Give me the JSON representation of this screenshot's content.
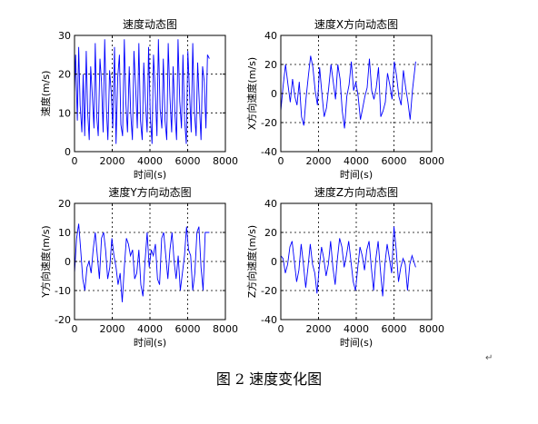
{
  "figure": {
    "caption": "图 2  速度变化图",
    "paragraph_mark": "↵"
  },
  "chart_data": [
    {
      "type": "line",
      "title": "速度动态图",
      "xlabel": "时间(s)",
      "ylabel": "速度(m/s)",
      "xlim": [
        0,
        8000
      ],
      "ylim": [
        0,
        30
      ],
      "xticks": [
        0,
        2000,
        4000,
        6000,
        8000
      ],
      "yticks": [
        0,
        10,
        20,
        30
      ],
      "grid": "dotted",
      "color": "#0000ff",
      "x": [
        0,
        60,
        150,
        220,
        300,
        390,
        460,
        540,
        620,
        700,
        780,
        860,
        950,
        1030,
        1100,
        1180,
        1260,
        1350,
        1430,
        1520,
        1600,
        1690,
        1770,
        1860,
        1950,
        2030,
        2120,
        2200,
        2290,
        2380,
        2460,
        2550,
        2640,
        2720,
        2810,
        2900,
        2980,
        3070,
        3150,
        3240,
        3330,
        3410,
        3500,
        3590,
        3670,
        3760,
        3850,
        3930,
        4020,
        4110,
        4190,
        4280,
        4370,
        4450,
        4540,
        4630,
        4710,
        4800,
        4890,
        4970,
        5060,
        5150,
        5230,
        5320,
        5410,
        5490,
        5580,
        5670,
        5750,
        5840,
        5930,
        6010,
        6100,
        6190,
        6270,
        6360,
        6450,
        6530,
        6620,
        6710,
        6790,
        6880,
        6970,
        7050,
        7150
      ],
      "y": [
        15,
        25,
        8,
        27,
        12,
        5,
        20,
        4,
        26,
        10,
        3,
        22,
        14,
        6,
        28,
        9,
        4,
        24,
        18,
        5,
        29,
        11,
        3,
        21,
        15,
        6,
        27,
        2,
        19,
        25,
        7,
        4,
        29,
        13,
        5,
        22,
        10,
        3,
        26,
        17,
        6,
        28,
        8,
        3,
        23,
        13,
        5,
        27,
        9,
        2,
        25,
        16,
        4,
        29,
        11,
        6,
        24,
        8,
        3,
        28,
        14,
        5,
        22,
        10,
        3,
        29,
        13,
        6,
        25,
        8,
        2,
        26,
        15,
        5,
        28,
        10,
        4,
        23,
        12,
        3,
        22,
        18,
        6,
        25,
        24
      ]
    },
    {
      "type": "line",
      "title": "速度X方向动态图",
      "xlabel": "时间(s)",
      "ylabel": "X方向速度(m/s)",
      "xlim": [
        0,
        8000
      ],
      "ylim": [
        -40,
        40
      ],
      "xticks": [
        0,
        2000,
        4000,
        6000,
        8000
      ],
      "yticks": [
        -40,
        -20,
        0,
        20,
        40
      ],
      "grid": "dotted",
      "color": "#0000ff",
      "x": [
        0,
        120,
        250,
        380,
        500,
        620,
        740,
        860,
        980,
        1100,
        1220,
        1340,
        1460,
        1580,
        1700,
        1820,
        1940,
        2060,
        2180,
        2300,
        2420,
        2540,
        2660,
        2780,
        2900,
        3020,
        3140,
        3260,
        3380,
        3500,
        3620,
        3740,
        3860,
        3980,
        4100,
        4220,
        4340,
        4460,
        4580,
        4700,
        4820,
        4940,
        5060,
        5180,
        5300,
        5420,
        5540,
        5660,
        5780,
        5900,
        6020,
        6140,
        6260,
        6380,
        6500,
        6620,
        6740,
        6860,
        6980,
        7150
      ],
      "y": [
        -12,
        5,
        20,
        6,
        -6,
        10,
        -2,
        -8,
        8,
        -16,
        -22,
        -3,
        12,
        26,
        18,
        2,
        -8,
        18,
        0,
        -16,
        -10,
        4,
        20,
        8,
        -4,
        20,
        10,
        -12,
        -24,
        -2,
        6,
        22,
        2,
        8,
        -2,
        -18,
        -10,
        -2,
        4,
        24,
        2,
        -4,
        4,
        18,
        -16,
        -12,
        -6,
        14,
        6,
        -4,
        22,
        12,
        -2,
        -8,
        16,
        4,
        -6,
        -18,
        2,
        22
      ]
    },
    {
      "type": "line",
      "title": "速度Y方向动态图",
      "xlabel": "时间(s)",
      "ylabel": "Y方向速度(m/s)",
      "xlim": [
        0,
        8000
      ],
      "ylim": [
        -20,
        20
      ],
      "xticks": [
        0,
        2000,
        4000,
        6000,
        8000
      ],
      "yticks": [
        -20,
        -10,
        0,
        10,
        20
      ],
      "grid": "dotted",
      "color": "#0000ff",
      "x": [
        0,
        110,
        220,
        330,
        440,
        550,
        660,
        770,
        880,
        990,
        1100,
        1210,
        1320,
        1430,
        1540,
        1650,
        1760,
        1870,
        1980,
        2090,
        2200,
        2310,
        2420,
        2530,
        2640,
        2750,
        2860,
        2970,
        3080,
        3190,
        3300,
        3410,
        3520,
        3630,
        3740,
        3850,
        3960,
        4070,
        4180,
        4290,
        4400,
        4510,
        4620,
        4730,
        4840,
        4950,
        5060,
        5170,
        5280,
        5390,
        5500,
        5610,
        5720,
        5830,
        5940,
        6050,
        6160,
        6270,
        6380,
        6490,
        6600,
        6710,
        6820,
        6930,
        7150
      ],
      "y": [
        -4,
        8,
        13,
        4,
        -6,
        -10,
        -2,
        0,
        -4,
        4,
        10,
        2,
        -6,
        8,
        10,
        4,
        -6,
        -2,
        8,
        2,
        -2,
        -8,
        -4,
        -14,
        -2,
        8,
        6,
        2,
        4,
        -6,
        -4,
        4,
        -8,
        -12,
        0,
        10,
        -2,
        4,
        2,
        6,
        -6,
        -8,
        8,
        10,
        2,
        -6,
        4,
        10,
        0,
        -6,
        2,
        -10,
        -4,
        2,
        12,
        4,
        2,
        -10,
        -4,
        10,
        12,
        -2,
        -10,
        10,
        10
      ]
    },
    {
      "type": "line",
      "title": "速度Z方向动态图",
      "xlabel": "时间(s)",
      "ylabel": "Z方向速度(m/s)",
      "xlim": [
        0,
        8000
      ],
      "ylim": [
        -40,
        40
      ],
      "xticks": [
        0,
        2000,
        4000,
        6000,
        8000
      ],
      "yticks": [
        -40,
        -20,
        0,
        20,
        40
      ],
      "grid": "dotted",
      "color": "#0000ff",
      "x": [
        0,
        120,
        240,
        360,
        480,
        600,
        720,
        840,
        960,
        1080,
        1200,
        1320,
        1440,
        1560,
        1680,
        1800,
        1920,
        2040,
        2160,
        2280,
        2400,
        2520,
        2640,
        2760,
        2880,
        3000,
        3120,
        3240,
        3360,
        3480,
        3600,
        3720,
        3840,
        3960,
        4080,
        4200,
        4320,
        4440,
        4560,
        4680,
        4800,
        4920,
        5040,
        5160,
        5280,
        5400,
        5520,
        5640,
        5760,
        5880,
        6000,
        6120,
        6240,
        6360,
        6480,
        6600,
        6720,
        6840,
        6960,
        7150
      ],
      "y": [
        4,
        2,
        -8,
        -2,
        10,
        14,
        0,
        -14,
        -6,
        12,
        -2,
        -18,
        -4,
        12,
        -2,
        -8,
        -22,
        -4,
        10,
        2,
        -10,
        -2,
        14,
        -4,
        -16,
        2,
        16,
        10,
        -4,
        4,
        14,
        0,
        -14,
        -20,
        -4,
        10,
        4,
        -6,
        8,
        14,
        -4,
        -20,
        2,
        14,
        -6,
        -24,
        -2,
        12,
        2,
        -8,
        24,
        8,
        -14,
        -4,
        2,
        -2,
        -20,
        -2,
        4,
        -4
      ]
    }
  ]
}
